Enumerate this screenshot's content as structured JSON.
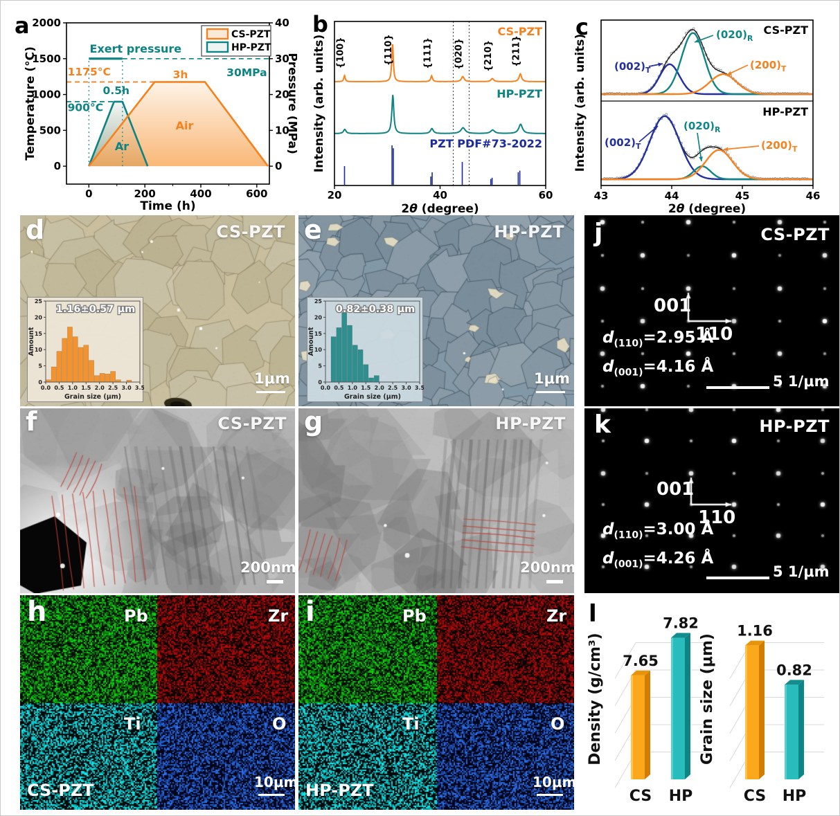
{
  "figure": {
    "background": "#ffffff",
    "accent_colors": {
      "orange": "#F5821F",
      "teal": "#0E8383",
      "navy": "#1C2B9B",
      "blue": "#222FA0"
    },
    "panels": {
      "a": {
        "letter": "a",
        "xlabel": "Time (h)",
        "ylabel_left": "Temperature (°C)",
        "ylabel_right": "Pressure (MPa)",
        "legend": [
          {
            "label": "CS-PZT",
            "color": "#F5821F"
          },
          {
            "label": "HP-PZT",
            "color": "#0E8383"
          }
        ],
        "chart_data": {
          "type": "line",
          "xlim": [
            -80,
            645
          ],
          "ylim_left": [
            -250,
            2000
          ],
          "ylim_right": [
            -5,
            40
          ],
          "xticks": [
            0,
            200,
            400,
            600
          ],
          "yticks_left": [
            0,
            500,
            1000,
            1500,
            2000
          ],
          "yticks_right": [
            0,
            10,
            20,
            30,
            40
          ],
          "series": [
            {
              "name": "CS-PZT",
              "color": "#F5821F",
              "units": "temperature °C vs time h",
              "points": [
                [
                  0,
                  0
                ],
                [
                  235,
                  1175
                ],
                [
                  415,
                  1175
                ],
                [
                  640,
                  0
                ]
              ]
            },
            {
              "name": "HP-PZT",
              "color": "#0E8383",
              "units": "temperature °C vs time h",
              "points": [
                [
                  0,
                  0
                ],
                [
                  90,
                  900
                ],
                [
                  120,
                  900
                ],
                [
                  210,
                  0
                ]
              ]
            },
            {
              "name": "HP pressure",
              "color": "#0E8383",
              "units": "MPa right axis",
              "points_mpa": [
                [
                  0,
                  30
                ],
                [
                  120,
                  30
                ]
              ]
            }
          ],
          "guides": {
            "pressure_dashed_mpa": {
              "y": 30,
              "x": [
                120,
                645
              ]
            },
            "temp_dashed_cs": {
              "y": 1175,
              "x": [
                -80,
                235
              ]
            },
            "temp_dashed_hp": {
              "y": 900,
              "x": [
                -80,
                90
              ]
            },
            "dotted_verticals_x": [
              0,
              120
            ]
          },
          "annotations": [
            {
              "text": "Exert pressure",
              "x": 3,
              "y": 1585,
              "color": "#0E8383",
              "fs": 16
            },
            {
              "text": "1175°C",
              "x": -76,
              "y": 1268,
              "color": "#F5821F",
              "fs": 15.5
            },
            {
              "text": "900°C",
              "x": -76,
              "y": 768,
              "color": "#0E8383",
              "fs": 15.5
            },
            {
              "text": "0.5h",
              "x": 50,
              "y": 1005,
              "color": "#0E8383",
              "fs": 15.5
            },
            {
              "text": "3h",
              "x": 300,
              "y": 1228,
              "color": "#F5821F",
              "fs": 15.5
            },
            {
              "text": "Air",
              "x": 310,
              "y": 515,
              "color": "#F5821F",
              "fs": 16
            },
            {
              "text": "Ar",
              "x": 93,
              "y": 222,
              "color": "#0E8383",
              "fs": 16
            },
            {
              "text": "30MPa",
              "x": 492,
              "y": 1258,
              "color": "#0E8383",
              "fs": 15.5
            }
          ]
        }
      },
      "b": {
        "letter": "b",
        "xlabel_parts": [
          "2",
          "θ",
          " (degree)"
        ],
        "ylabel": "Intensity (arb. units)",
        "chart_data": {
          "type": "xrd",
          "xlim": [
            20,
            60
          ],
          "xticks": [
            20,
            40,
            60
          ],
          "dotted_lines_x": [
            42.5,
            45.5
          ],
          "peak_labels": [
            {
              "text": "{100}",
              "x": 21.9
            },
            {
              "text": "{110}",
              "x": 31.0
            },
            {
              "text": "{111}",
              "x": 38.4
            },
            {
              "text": "{020}",
              "x": 44.3
            },
            {
              "text": "{210}",
              "x": 49.9
            },
            {
              "text": "{211}",
              "x": 55.2
            }
          ],
          "traces": [
            {
              "label": "CS-PZT",
              "color": "#F5821F",
              "peaks": [
                [
                  21.9,
                  0.16,
                  0.16
                ],
                [
                  31.0,
                  1.0,
                  0.17
                ],
                [
                  38.4,
                  0.15,
                  0.2
                ],
                [
                  44.3,
                  0.13,
                  0.32
                ],
                [
                  49.9,
                  0.08,
                  0.3
                ],
                [
                  55.2,
                  0.2,
                  0.28
                ]
              ]
            },
            {
              "label": "HP-PZT",
              "color": "#0E8383",
              "peaks": [
                [
                  21.95,
                  0.11,
                  0.28
                ],
                [
                  31.05,
                  1.0,
                  0.22
                ],
                [
                  38.45,
                  0.13,
                  0.32
                ],
                [
                  44.35,
                  0.15,
                  0.5
                ],
                [
                  49.95,
                  0.09,
                  0.45
                ],
                [
                  55.25,
                  0.24,
                  0.42
                ]
              ]
            }
          ],
          "reference": {
            "label": "PZT PDF#73-2022",
            "color": "#1C2B9B",
            "sticks": [
              [
                21.9,
                0.45
              ],
              [
                30.9,
                0.95
              ],
              [
                31.15,
                0.88
              ],
              [
                38.25,
                0.2
              ],
              [
                38.5,
                0.3
              ],
              [
                44.2,
                0.55
              ],
              [
                49.6,
                0.14
              ],
              [
                49.85,
                0.17
              ],
              [
                54.8,
                0.3
              ],
              [
                55.1,
                0.34
              ]
            ]
          }
        }
      },
      "c": {
        "letter": "c",
        "xlabel_parts": [
          "2",
          "θ",
          " (degree)"
        ],
        "ylabel": "Intensity (arb. units)",
        "chart_data": {
          "type": "peak-fit",
          "xlim": [
            43,
            46
          ],
          "xticks": [
            43,
            44,
            45,
            46
          ],
          "subplots": [
            {
              "title": "CS-PZT",
              "peaks": [
                {
                  "label_pre": "(002)",
                  "label_sub": "T",
                  "color": "#222FA0",
                  "center": 43.97,
                  "height": 0.45,
                  "sigma": 0.14
                },
                {
                  "label_pre": "(020)",
                  "label_sub": "R",
                  "color": "#0F8585",
                  "center": 44.3,
                  "height": 0.92,
                  "sigma": 0.16
                },
                {
                  "label_pre": "(200)",
                  "label_sub": "T",
                  "color": "#F5821F",
                  "center": 44.73,
                  "height": 0.3,
                  "sigma": 0.19
                }
              ]
            },
            {
              "title": "HP-PZT",
              "peaks": [
                {
                  "label_pre": "(002)",
                  "label_sub": "T",
                  "color": "#222FA0",
                  "center": 43.9,
                  "height": 0.97,
                  "sigma": 0.21
                },
                {
                  "label_pre": "(020)",
                  "label_sub": "R",
                  "color": "#0F8585",
                  "center": 44.43,
                  "height": 0.2,
                  "sigma": 0.12
                },
                {
                  "label_pre": "(200)",
                  "label_sub": "T",
                  "color": "#F5821F",
                  "center": 44.67,
                  "height": 0.45,
                  "sigma": 0.19
                }
              ]
            }
          ]
        }
      },
      "d": {
        "letter": "d",
        "title": "CS-PZT",
        "scale_bar": "1μm",
        "inset": {
          "title": "1.16±0.57 μm",
          "xlabel": "Grain size (μm)",
          "ylabel": "Amount",
          "chart_data": {
            "type": "bar",
            "color": "#F2932F",
            "xlim": [
              0,
              3.5
            ],
            "ylim": [
              0,
              25
            ],
            "xticks": [
              0.0,
              0.5,
              1.0,
              1.5,
              2.0,
              2.5,
              3.0,
              3.5
            ],
            "yticks": [
              0,
              5,
              10,
              15,
              20,
              25
            ],
            "bin_centers": [
              0.1,
              0.3,
              0.5,
              0.7,
              0.9,
              1.1,
              1.3,
              1.5,
              1.7,
              1.9,
              2.1,
              2.3,
              2.5,
              2.7,
              2.9,
              3.1
            ],
            "values": [
              0.7,
              4.7,
              9.5,
              13.5,
              17,
              14,
              10.7,
              11.4,
              6.7,
              2,
              2.7,
              2.5,
              3.3,
              0.7,
              0,
              0.6
            ]
          }
        }
      },
      "e": {
        "letter": "e",
        "title": "HP-PZT",
        "scale_bar": "1μm",
        "inset": {
          "title": "0.82±0.38 μm",
          "xlabel": "Grain size (μm)",
          "ylabel": "Amount",
          "chart_data": {
            "type": "bar",
            "color": "#2F8F8F",
            "xlim": [
              0,
              3.5
            ],
            "ylim": [
              0,
              25
            ],
            "xticks": [
              0.0,
              0.5,
              1.0,
              1.5,
              2.0,
              2.5,
              3.0,
              3.5
            ],
            "yticks": [
              0,
              5,
              10,
              15,
              20,
              25
            ],
            "bin_centers": [
              0.1,
              0.3,
              0.5,
              0.7,
              0.9,
              1.1,
              1.3,
              1.5,
              1.7,
              1.9,
              2.1,
              2.3,
              2.5,
              2.7,
              2.9,
              3.1
            ],
            "values": [
              0,
              14,
              16.8,
              21.5,
              17.5,
              11.4,
              10,
              5.4,
              1.3,
              2,
              0,
              0,
              0,
              0,
              0,
              0
            ]
          }
        }
      },
      "f": {
        "letter": "f",
        "title": "CS-PZT",
        "scale_bar": "200nm"
      },
      "g": {
        "letter": "g",
        "title": "HP-PZT",
        "scale_bar": "200nm"
      },
      "h": {
        "letter": "h",
        "sample": "CS-PZT",
        "elements": [
          "Pb",
          "Zr",
          "Ti",
          "O"
        ],
        "scale_bar": "10μm"
      },
      "i": {
        "letter": "i",
        "sample": "HP-PZT",
        "elements": [
          "Pb",
          "Zr",
          "Ti",
          "O"
        ],
        "scale_bar": "10μm"
      },
      "j": {
        "letter": "j",
        "title": "CS-PZT",
        "axis1": "001",
        "axis2": "110",
        "d1": {
          "pre": "d",
          "sub": "(110)",
          "post": "=2.95 Å"
        },
        "d2": {
          "pre": "d",
          "sub": "(001)",
          "post": "=4.16 Å"
        },
        "scale_bar": "5 1/μm"
      },
      "k": {
        "letter": "k",
        "title": "HP-PZT",
        "axis1": "001",
        "axis2": "110",
        "d1": {
          "pre": "d",
          "sub": "(110)",
          "post": "=3.00 Å"
        },
        "d2": {
          "pre": "d",
          "sub": "(001)",
          "post": "=4.26 Å"
        },
        "scale_bar": "5 1/μm"
      },
      "l": {
        "letter": "l",
        "chart_data": [
          {
            "type": "bar3d",
            "ylabel": "Density (g/cm³)",
            "categories": [
              "CS",
              "HP"
            ],
            "values": [
              7.65,
              7.82
            ],
            "axis_min": 7.18,
            "axis_max": 7.9,
            "colors": [
              "#FBA81C",
              "#29BCBC"
            ]
          },
          {
            "type": "bar3d",
            "ylabel": "Grain size (μm)",
            "categories": [
              "CS",
              "HP"
            ],
            "values": [
              1.16,
              0.82
            ],
            "axis_min": 0,
            "axis_max": 1.38,
            "colors": [
              "#FBA81C",
              "#29BCBC"
            ]
          }
        ]
      }
    }
  }
}
